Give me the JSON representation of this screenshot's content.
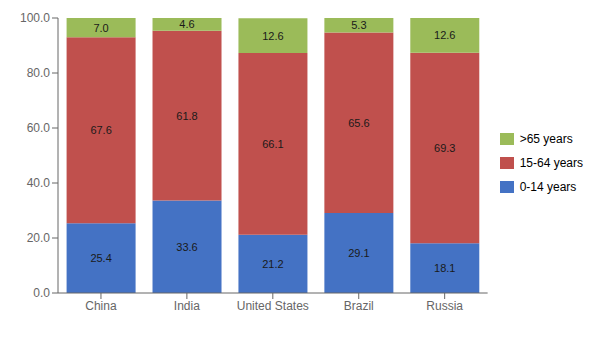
{
  "chart_data": {
    "type": "bar",
    "stacked": true,
    "data_labels": true,
    "grid": false,
    "legend": "right",
    "categories": [
      "China",
      "India",
      "United States",
      "Brazil",
      "Russia"
    ],
    "series": [
      {
        "name": "0-14 years",
        "color": "#4472C4",
        "values": [
          25.4,
          33.6,
          21.2,
          29.1,
          18.1
        ],
        "value_labels": [
          "25.4",
          "33.6",
          "21.2",
          "29.1",
          "18.1"
        ]
      },
      {
        "name": "15-64 years",
        "color": "#C0504D",
        "values": [
          67.6,
          61.8,
          66.1,
          65.6,
          69.3
        ],
        "value_labels": [
          "67.6",
          "61.8",
          "66.1",
          "65.6",
          "69.3"
        ]
      },
      {
        "name": ">65 years",
        "color": "#9BBB59",
        "values": [
          7.0,
          4.6,
          12.6,
          5.3,
          12.6
        ],
        "value_labels": [
          "7.0",
          "4.6",
          "12.6",
          "5.3",
          "12.6"
        ]
      }
    ],
    "ylim": [
      0,
      100
    ],
    "yticks": [
      {
        "value": 0,
        "label": "0.0"
      },
      {
        "value": 20,
        "label": "20.0"
      },
      {
        "value": 40,
        "label": "40.0"
      },
      {
        "value": 60,
        "label": "60.0"
      },
      {
        "value": 80,
        "label": "80.0"
      },
      {
        "value": 100,
        "label": "100.0"
      }
    ]
  }
}
